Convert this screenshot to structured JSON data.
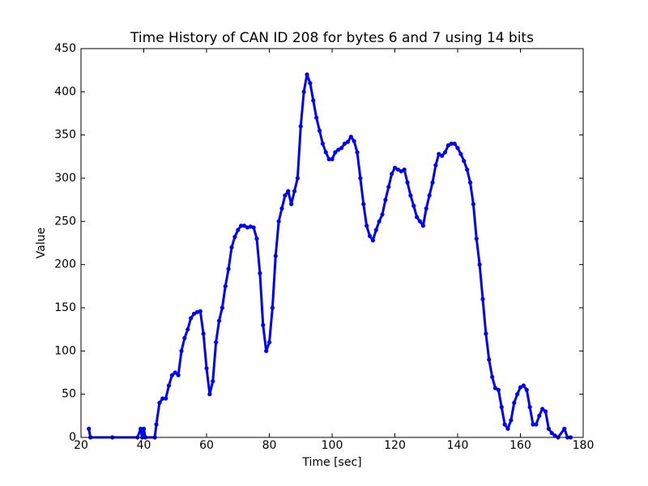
{
  "chart_data": {
    "type": "line",
    "title": "Time History of CAN ID 208 for bytes 6 and 7 using 14 bits",
    "x_label": "Time [sec]",
    "y_label": "Value",
    "color": "#0000ff",
    "x": [
      22.5,
      23,
      30,
      38,
      39,
      39.5,
      40,
      40.5,
      43.5,
      44,
      45,
      46,
      47,
      48,
      49,
      50,
      51,
      52,
      53,
      54,
      55,
      56,
      57,
      58,
      59,
      60,
      61,
      62,
      63,
      64,
      65,
      66,
      67,
      68,
      69,
      70,
      71,
      72,
      73,
      74,
      75,
      76,
      77,
      78,
      79,
      80,
      81,
      82,
      83,
      84,
      85,
      86,
      87,
      88,
      89,
      90,
      91,
      92,
      93,
      94,
      95,
      96,
      97,
      98,
      99,
      100,
      101,
      102,
      103,
      104,
      105,
      106,
      107,
      108,
      109,
      110,
      111,
      112,
      113,
      114,
      115,
      116,
      117,
      118,
      119,
      120,
      121,
      122,
      123,
      124,
      125,
      126,
      127,
      128,
      129,
      130,
      131,
      132,
      133,
      134,
      135,
      136,
      137,
      138,
      139,
      140,
      141,
      142,
      143,
      144,
      145,
      146,
      147,
      148,
      149,
      150,
      151,
      152,
      153,
      154,
      155,
      156,
      157,
      158,
      159,
      160,
      161,
      162,
      163,
      164,
      165,
      166,
      167,
      168,
      169,
      170,
      171,
      172,
      174,
      175,
      176
    ],
    "values": [
      10,
      0,
      0,
      0,
      10,
      0,
      10,
      0,
      0,
      15,
      40,
      45,
      45,
      60,
      72,
      75,
      72,
      100,
      115,
      125,
      138,
      143,
      145,
      146,
      120,
      80,
      50,
      65,
      110,
      135,
      150,
      175,
      195,
      220,
      232,
      240,
      245,
      245,
      243,
      244,
      243,
      230,
      190,
      130,
      100,
      110,
      150,
      210,
      250,
      265,
      280,
      285,
      270,
      285,
      300,
      360,
      400,
      420,
      410,
      390,
      370,
      355,
      340,
      330,
      322,
      322,
      330,
      333,
      335,
      340,
      342,
      348,
      343,
      330,
      300,
      270,
      245,
      233,
      228,
      240,
      250,
      258,
      275,
      290,
      305,
      312,
      310,
      308,
      310,
      295,
      280,
      268,
      255,
      250,
      245,
      265,
      280,
      295,
      315,
      328,
      326,
      330,
      338,
      340,
      340,
      335,
      328,
      320,
      310,
      295,
      270,
      230,
      200,
      160,
      120,
      90,
      70,
      57,
      55,
      35,
      15,
      10,
      20,
      40,
      50,
      58,
      60,
      55,
      35,
      15,
      15,
      25,
      33,
      30,
      10,
      5,
      2,
      0,
      10,
      0,
      0
    ],
    "xlim": [
      20,
      180
    ],
    "xticks": [
      20,
      40,
      60,
      80,
      100,
      120,
      140,
      160,
      180
    ],
    "ylim": [
      0,
      450
    ],
    "yticks": [
      0,
      50,
      100,
      150,
      200,
      250,
      300,
      350,
      400,
      450
    ]
  }
}
